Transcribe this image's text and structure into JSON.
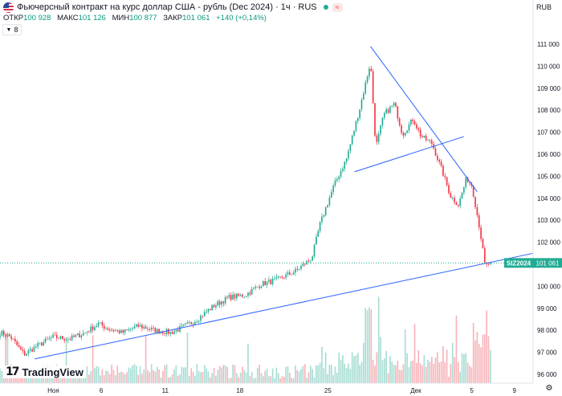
{
  "header": {
    "title": "Фьючерсный контракт на курс доллар США - рубль (Dec 2024) · 1ч · RUS",
    "ohlc": [
      {
        "k": "ОТКР",
        "v": "100 928"
      },
      {
        "k": "МАКС",
        "v": "101 126"
      },
      {
        "k": "МИН",
        "v": "100 877"
      },
      {
        "k": "ЗАКР",
        "v": "101 061"
      },
      {
        "k": "",
        "v": "+140 (+0,14%)"
      }
    ],
    "indicator_count": "8",
    "currency": "RUB",
    "badge_icon": "eye-off-icon",
    "badge_glyph": "≈"
  },
  "logo": {
    "mark": "17",
    "text": "TradingView"
  },
  "colors": {
    "up": "#22ab94",
    "down": "#f23645",
    "trendline": "#2962ff",
    "vol_up": "#a8ddd4",
    "vol_down": "#f7b4ba",
    "label_bg": "#22ab94"
  },
  "chart_data": {
    "type": "candlestick",
    "title": "Фьючерсный контракт на курс доллар США - рубль (Dec 2024)",
    "interval": "1ч",
    "x_ticks": [
      "Ноя",
      "6",
      "11",
      "18",
      "25",
      "Дек",
      "5",
      "9"
    ],
    "y_ticks": [
      {
        "v": 96000,
        "label": "96 000"
      },
      {
        "v": 97000,
        "label": "97 000"
      },
      {
        "v": 98000,
        "label": "98 000"
      },
      {
        "v": 99000,
        "label": "99 000"
      },
      {
        "v": 100000,
        "label": "100 000"
      },
      {
        "v": 101000,
        "label": "101 000"
      },
      {
        "v": 102000,
        "label": "102 000"
      },
      {
        "v": 103000,
        "label": "103 000"
      },
      {
        "v": 104000,
        "label": "104 000"
      },
      {
        "v": 105000,
        "label": "105 000"
      },
      {
        "v": 106000,
        "label": "106 000"
      },
      {
        "v": 107000,
        "label": "107 000"
      },
      {
        "v": 108000,
        "label": "108 000"
      },
      {
        "v": 109000,
        "label": "109 000"
      },
      {
        "v": 110000,
        "label": "110 000"
      },
      {
        "v": 111000,
        "label": "111 000"
      }
    ],
    "ylim": [
      95600,
      111400
    ],
    "price_label": {
      "symbol": "SIZ2024",
      "value": "101 061",
      "price": 101061
    },
    "close_path": [
      {
        "t": 0,
        "p": 97900
      },
      {
        "t": 0.02,
        "p": 97700
      },
      {
        "t": 0.045,
        "p": 96900
      },
      {
        "t": 0.07,
        "p": 97300
      },
      {
        "t": 0.1,
        "p": 97700
      },
      {
        "t": 0.13,
        "p": 97600
      },
      {
        "t": 0.16,
        "p": 97900
      },
      {
        "t": 0.185,
        "p": 98300
      },
      {
        "t": 0.2,
        "p": 98100
      },
      {
        "t": 0.23,
        "p": 97900
      },
      {
        "t": 0.26,
        "p": 98200
      },
      {
        "t": 0.29,
        "p": 98000
      },
      {
        "t": 0.32,
        "p": 97900
      },
      {
        "t": 0.34,
        "p": 98100
      },
      {
        "t": 0.37,
        "p": 98500
      },
      {
        "t": 0.4,
        "p": 99100
      },
      {
        "t": 0.43,
        "p": 99500
      },
      {
        "t": 0.46,
        "p": 99600
      },
      {
        "t": 0.49,
        "p": 100100
      },
      {
        "t": 0.52,
        "p": 100300
      },
      {
        "t": 0.555,
        "p": 100700
      },
      {
        "t": 0.585,
        "p": 101300
      },
      {
        "t": 0.6,
        "p": 102800
      },
      {
        "t": 0.625,
        "p": 104500
      },
      {
        "t": 0.65,
        "p": 105800
      },
      {
        "t": 0.675,
        "p": 108100
      },
      {
        "t": 0.695,
        "p": 110200
      },
      {
        "t": 0.705,
        "p": 106300
      },
      {
        "t": 0.72,
        "p": 107800
      },
      {
        "t": 0.74,
        "p": 108300
      },
      {
        "t": 0.755,
        "p": 106900
      },
      {
        "t": 0.775,
        "p": 107600
      },
      {
        "t": 0.79,
        "p": 106800
      },
      {
        "t": 0.81,
        "p": 106500
      },
      {
        "t": 0.83,
        "p": 105200
      },
      {
        "t": 0.845,
        "p": 104100
      },
      {
        "t": 0.86,
        "p": 103700
      },
      {
        "t": 0.875,
        "p": 104900
      },
      {
        "t": 0.885,
        "p": 104600
      },
      {
        "t": 0.9,
        "p": 102600
      },
      {
        "t": 0.91,
        "p": 100900
      },
      {
        "t": 0.92,
        "p": 101061
      }
    ],
    "trendlines": [
      {
        "from": {
          "t": 0.065,
          "p": 96700
        },
        "to": {
          "t": 1.0,
          "p": 101500
        }
      },
      {
        "from": {
          "t": 0.665,
          "p": 105200
        },
        "to": {
          "t": 0.87,
          "p": 106800
        }
      },
      {
        "from": {
          "t": 0.695,
          "p": 110900
        },
        "to": {
          "t": 0.895,
          "p": 104300
        }
      }
    ],
    "grid": false,
    "volume": true
  }
}
